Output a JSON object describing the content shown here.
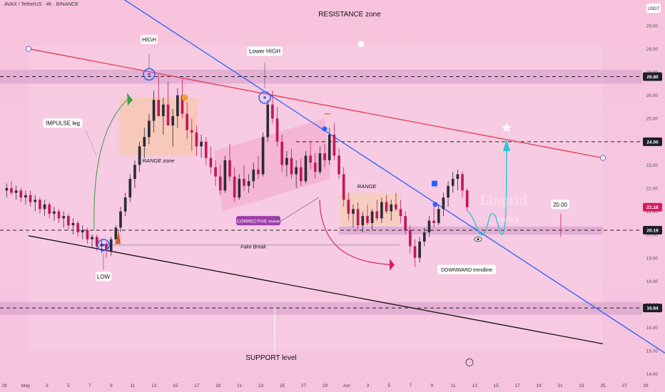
{
  "header": {
    "symbol_line": "AVAX / TetherUS · 4h · BINANCE",
    "currency": "USDT"
  },
  "colors": {
    "candle_up": "#2b2b3a",
    "candle_down": "#c2185b",
    "resistance_line": "#e53950",
    "downward_trendline": "#2962ff",
    "support_line": "#111111",
    "zone_band": "#d39ac6",
    "arrow_cyan": "#26c6da",
    "arrow_green": "#43a047",
    "arrow_magenta": "#d81b60"
  },
  "chart_data": {
    "type": "candlestick",
    "y_axis": {
      "ylim": [
        13.9,
        30.1
      ],
      "ticks": [
        "29.00",
        "28.00",
        "27.00",
        "26.00",
        "25.00",
        "24.00",
        "23.00",
        "22.00",
        "21.00",
        "20.00",
        "19.00",
        "18.00",
        "17.00",
        "16.00",
        "15.00",
        "14.00"
      ],
      "tick_values": [
        29,
        28,
        27,
        26,
        25,
        24,
        23,
        22,
        21,
        20,
        19,
        18,
        17,
        16,
        15,
        14
      ]
    },
    "x_axis": {
      "ticks": [
        "29",
        "May",
        "3",
        "5",
        "7",
        "9",
        "11",
        "13",
        "15",
        "17",
        "19",
        "21",
        "23",
        "25",
        "27",
        "29",
        "Jun",
        "3",
        "5",
        "7",
        "9",
        "11",
        "13",
        "15",
        "17",
        "19",
        "21",
        "23",
        "25",
        "27",
        "29"
      ]
    },
    "price_badges": [
      {
        "value": "26.80",
        "style": "dark"
      },
      {
        "value": "24.00",
        "style": "dark"
      },
      {
        "value": "21.18",
        "style": "red"
      },
      {
        "value": "20.19",
        "style": "dark"
      },
      {
        "value": "16.84",
        "style": "dark"
      }
    ],
    "levels": {
      "resistance": 26.8,
      "breakout_target": 24.0,
      "support_line": 20.19,
      "lower_support": 16.84
    },
    "annotations": {
      "resistance_zone": "RESISTANCE zone",
      "support_level": "SUPPORT level",
      "high": "HIGH",
      "lower_high": "Lower HIGH",
      "low": "LOW",
      "impulse_leg": "IMPULSE leg",
      "range_zone": "RANGE zone",
      "range": "RANGE",
      "corrective_move": "CORRECTIVE move",
      "fake_break": "Fake Break",
      "downward_trendline": "DOWNWARD trendline",
      "price_target": "20.00",
      "watermark_main": "Lingrid",
      "watermark_sub": "FOREX"
    },
    "candles": [
      [
        21.9,
        22.2,
        21.6,
        22.0
      ],
      [
        22.0,
        22.3,
        21.7,
        21.8
      ],
      [
        21.8,
        22.1,
        21.5,
        21.9
      ],
      [
        21.9,
        22.0,
        21.4,
        21.6
      ],
      [
        21.6,
        21.9,
        21.3,
        21.7
      ],
      [
        21.7,
        21.9,
        21.2,
        21.4
      ],
      [
        21.4,
        21.7,
        21.0,
        21.5
      ],
      [
        21.5,
        21.6,
        20.9,
        21.1
      ],
      [
        21.1,
        21.5,
        20.8,
        21.3
      ],
      [
        21.3,
        21.4,
        20.7,
        20.9
      ],
      [
        20.9,
        21.2,
        20.6,
        21.0
      ],
      [
        21.0,
        21.1,
        20.5,
        20.7
      ],
      [
        20.7,
        21.0,
        20.3,
        20.8
      ],
      [
        20.8,
        20.9,
        20.2,
        20.4
      ],
      [
        20.4,
        20.7,
        20.0,
        20.5
      ],
      [
        20.5,
        20.6,
        19.9,
        20.1
      ],
      [
        20.1,
        20.4,
        19.8,
        20.2
      ],
      [
        20.2,
        20.3,
        19.6,
        19.8
      ],
      [
        19.8,
        20.0,
        19.4,
        19.9
      ],
      [
        19.9,
        20.0,
        19.3,
        19.5
      ],
      [
        19.5,
        19.8,
        19.2,
        19.6
      ],
      [
        19.6,
        19.7,
        19.0,
        19.3
      ],
      [
        19.3,
        19.9,
        19.1,
        19.8
      ],
      [
        19.8,
        20.4,
        19.6,
        20.3
      ],
      [
        20.3,
        21.2,
        20.1,
        21.0
      ],
      [
        21.0,
        21.8,
        20.8,
        21.6
      ],
      [
        21.6,
        22.6,
        21.4,
        22.4
      ],
      [
        22.4,
        23.2,
        22.0,
        23.0
      ],
      [
        23.0,
        24.0,
        22.7,
        23.8
      ],
      [
        23.8,
        24.6,
        23.3,
        24.2
      ],
      [
        24.2,
        25.2,
        23.9,
        24.9
      ],
      [
        24.9,
        26.2,
        24.4,
        25.8
      ],
      [
        25.8,
        26.9,
        25.2,
        25.1
      ],
      [
        25.1,
        25.9,
        24.3,
        25.6
      ],
      [
        25.6,
        26.6,
        24.8,
        24.7
      ],
      [
        24.7,
        25.4,
        23.8,
        25.1
      ],
      [
        25.1,
        26.3,
        24.6,
        26.0
      ],
      [
        26.0,
        26.7,
        25.0,
        25.2
      ],
      [
        25.2,
        25.7,
        24.1,
        24.5
      ],
      [
        24.5,
        25.0,
        23.6,
        24.4
      ],
      [
        24.4,
        24.7,
        23.4,
        23.8
      ],
      [
        23.8,
        24.3,
        23.3,
        24.0
      ],
      [
        24.0,
        24.2,
        23.0,
        23.3
      ],
      [
        23.3,
        23.8,
        22.6,
        22.9
      ],
      [
        22.9,
        23.2,
        22.1,
        22.5
      ],
      [
        22.5,
        23.0,
        21.7,
        21.9
      ],
      [
        21.9,
        23.4,
        21.8,
        23.2
      ],
      [
        23.2,
        23.9,
        22.3,
        22.5
      ],
      [
        22.5,
        22.9,
        21.4,
        21.6
      ],
      [
        21.6,
        22.6,
        21.5,
        22.4
      ],
      [
        22.4,
        23.0,
        21.9,
        22.1
      ],
      [
        22.1,
        22.6,
        21.8,
        22.3
      ],
      [
        22.3,
        23.1,
        22.0,
        22.8
      ],
      [
        22.8,
        23.4,
        22.4,
        22.6
      ],
      [
        22.6,
        24.4,
        22.5,
        24.2
      ],
      [
        24.2,
        25.8,
        24.0,
        25.6
      ],
      [
        25.6,
        26.2,
        24.8,
        25.0
      ],
      [
        25.0,
        25.5,
        23.8,
        24.0
      ],
      [
        24.0,
        24.3,
        22.7,
        23.0
      ],
      [
        23.0,
        23.6,
        22.5,
        23.3
      ],
      [
        23.3,
        23.7,
        22.4,
        22.6
      ],
      [
        22.6,
        23.2,
        22.0,
        22.9
      ],
      [
        22.9,
        23.3,
        22.1,
        22.3
      ],
      [
        22.3,
        23.6,
        22.2,
        23.4
      ],
      [
        23.4,
        24.0,
        22.8,
        23.1
      ],
      [
        23.1,
        23.5,
        22.4,
        22.7
      ],
      [
        22.7,
        23.8,
        22.6,
        23.5
      ],
      [
        23.5,
        23.9,
        22.9,
        23.2
      ],
      [
        23.2,
        24.6,
        23.0,
        24.3
      ],
      [
        24.3,
        24.8,
        23.2,
        23.4
      ],
      [
        23.4,
        23.7,
        22.4,
        22.6
      ],
      [
        22.6,
        22.9,
        21.2,
        21.5
      ],
      [
        21.5,
        21.8,
        20.6,
        20.9
      ],
      [
        20.9,
        21.3,
        20.3,
        21.1
      ],
      [
        21.1,
        21.4,
        20.2,
        20.4
      ],
      [
        20.4,
        21.0,
        20.1,
        20.8
      ],
      [
        20.8,
        21.3,
        20.4,
        20.5
      ],
      [
        20.5,
        21.1,
        20.2,
        21.0
      ],
      [
        21.0,
        21.5,
        20.6,
        20.7
      ],
      [
        20.7,
        21.6,
        20.5,
        21.4
      ],
      [
        21.4,
        21.7,
        20.9,
        21.0
      ],
      [
        21.0,
        21.5,
        20.6,
        21.3
      ],
      [
        21.3,
        21.8,
        21.0,
        21.1
      ],
      [
        21.1,
        21.5,
        20.5,
        20.8
      ],
      [
        20.8,
        21.0,
        20.0,
        20.2
      ],
      [
        20.2,
        20.4,
        19.2,
        19.5
      ],
      [
        19.5,
        19.8,
        18.6,
        19.0
      ],
      [
        19.0,
        19.9,
        18.8,
        19.7
      ],
      [
        19.7,
        20.3,
        19.5,
        20.1
      ],
      [
        20.1,
        20.8,
        19.9,
        20.6
      ],
      [
        20.6,
        21.2,
        20.3,
        20.5
      ],
      [
        20.5,
        21.3,
        20.4,
        21.1
      ],
      [
        21.1,
        21.8,
        20.8,
        21.6
      ],
      [
        21.6,
        22.3,
        21.2,
        22.1
      ],
      [
        22.1,
        22.7,
        21.8,
        22.4
      ],
      [
        22.4,
        22.8,
        21.9,
        22.6
      ],
      [
        22.6,
        22.7,
        21.6,
        21.9
      ],
      [
        21.9,
        22.0,
        21.0,
        21.18
      ]
    ]
  }
}
